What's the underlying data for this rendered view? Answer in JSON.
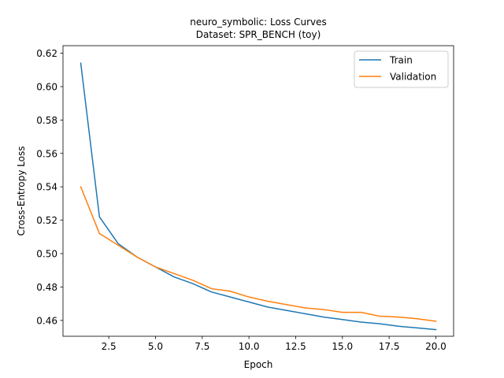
{
  "chart_data": {
    "type": "line",
    "title": "neuro_symbolic: Loss Curves",
    "subtitle": "Dataset: SPR_BENCH (toy)",
    "xlabel": "Epoch",
    "ylabel": "Cross-Entropy Loss",
    "xlim": [
      0.05,
      20.95
    ],
    "ylim": [
      0.4505,
      0.6245
    ],
    "xticks": [
      2.5,
      5.0,
      7.5,
      10.0,
      12.5,
      15.0,
      17.5,
      20.0
    ],
    "xtick_labels": [
      "2.5",
      "5.0",
      "7.5",
      "10.0",
      "12.5",
      "15.0",
      "17.5",
      "20.0"
    ],
    "yticks": [
      0.46,
      0.48,
      0.5,
      0.52,
      0.54,
      0.56,
      0.58,
      0.6,
      0.62
    ],
    "ytick_labels": [
      "0.46",
      "0.48",
      "0.50",
      "0.52",
      "0.54",
      "0.56",
      "0.58",
      "0.60",
      "0.62"
    ],
    "grid": false,
    "legend_position": "top-right",
    "x": [
      1,
      2,
      3,
      4,
      5,
      6,
      7,
      8,
      9,
      10,
      11,
      12,
      13,
      14,
      15,
      16,
      17,
      18,
      19,
      20
    ],
    "series": [
      {
        "name": "Train",
        "color": "#1f77b4",
        "values": [
          0.614,
          0.522,
          0.506,
          0.498,
          0.492,
          0.486,
          0.482,
          0.477,
          0.474,
          0.471,
          0.468,
          0.466,
          0.464,
          0.462,
          0.4605,
          0.459,
          0.458,
          0.4565,
          0.4555,
          0.4545
        ]
      },
      {
        "name": "Validation",
        "color": "#ff7f0e",
        "values": [
          0.54,
          0.512,
          0.505,
          0.498,
          0.492,
          0.488,
          0.484,
          0.479,
          0.4775,
          0.474,
          0.4715,
          0.4695,
          0.4675,
          0.4665,
          0.4648,
          0.4648,
          0.4625,
          0.462,
          0.461,
          0.4595
        ]
      }
    ]
  }
}
